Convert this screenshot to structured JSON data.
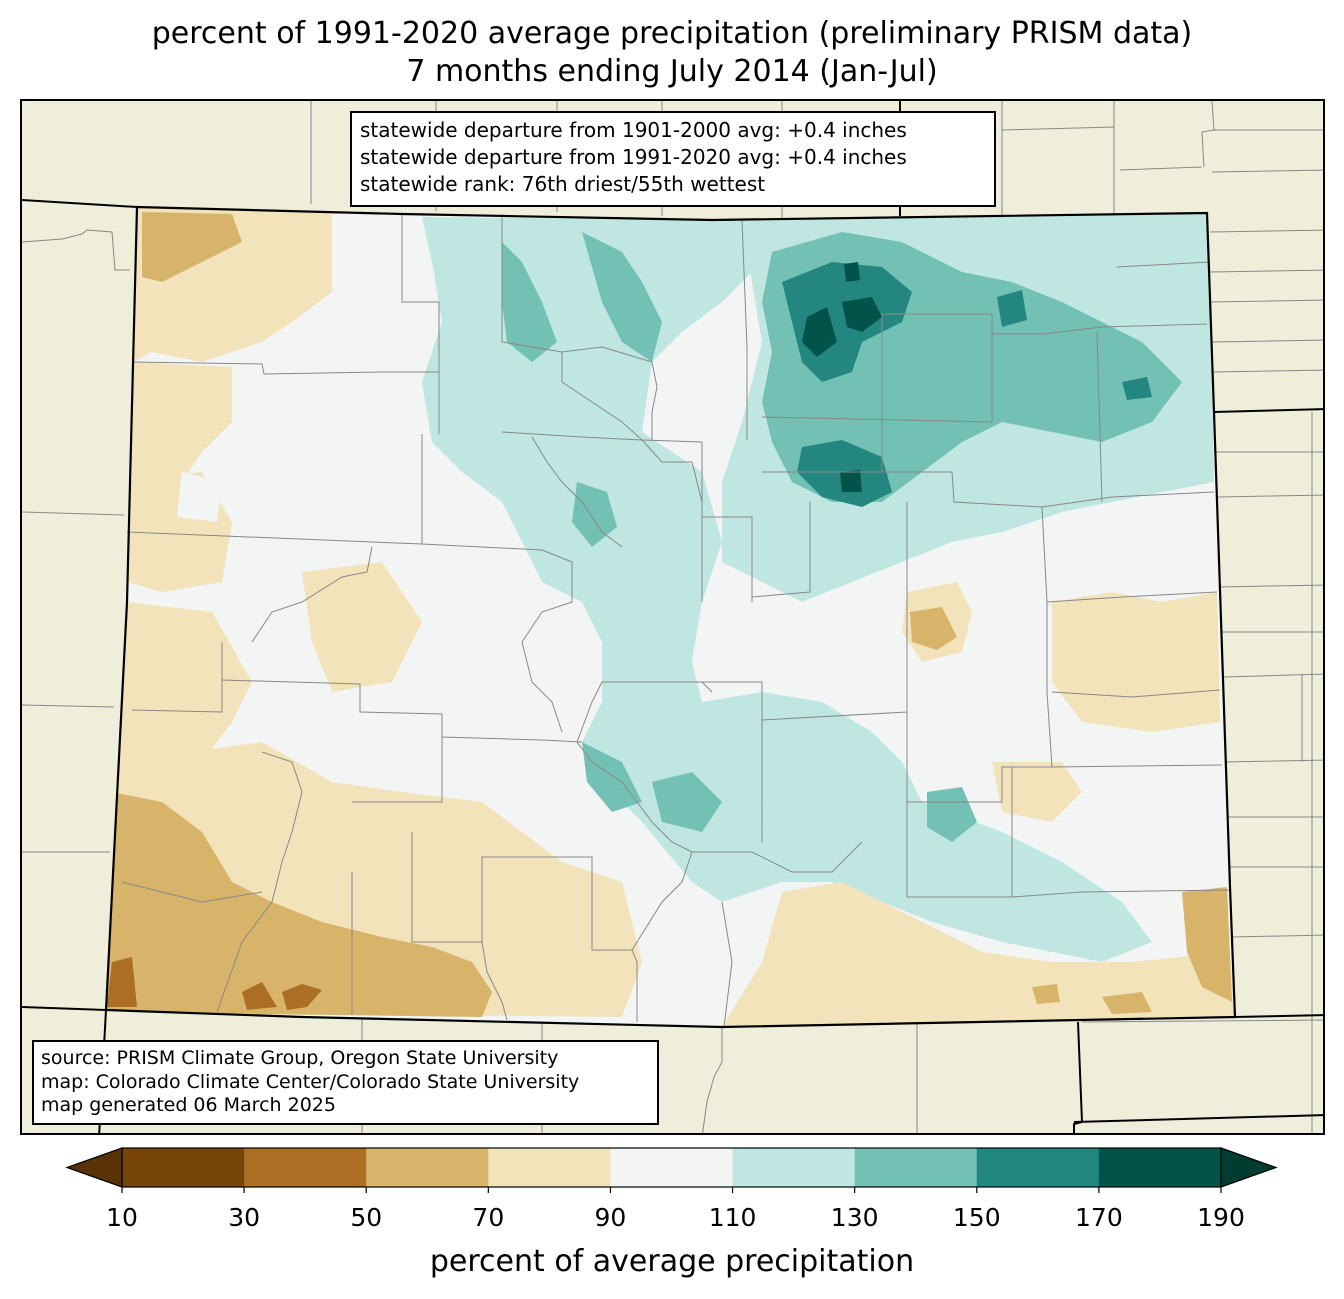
{
  "title": {
    "line1": "percent of 1991-2020 average precipitation (preliminary PRISM data)",
    "line2": "7 months ending July 2014 (Jan-Jul)"
  },
  "stats": {
    "line1": "statewide departure from 1901-2000 avg: +0.4 inches",
    "line2": "statewide departure from 1991-2020 avg: +0.4 inches",
    "line3": "statewide rank: 76th driest/55th wettest"
  },
  "source": {
    "line1": "source: PRISM Climate Group, Oregon State University",
    "line2": "map: Colorado Climate Center/Colorado State University",
    "line3": "map generated 06 March 2025"
  },
  "colorbar": {
    "label": "percent of average precipitation",
    "ticks": [
      "10",
      "30",
      "50",
      "70",
      "90",
      "110",
      "130",
      "150",
      "170",
      "190"
    ],
    "colors": [
      "#754406",
      "#ab6e22",
      "#d8b46b",
      "#f2e3ba",
      "#f3f5f4",
      "#bfe6e1",
      "#72c1b4",
      "#238780",
      "#02534a"
    ],
    "under_color": "#593207",
    "over_color": "#003c30"
  },
  "map_colors": {
    "background": "#efeedb",
    "county_lines": "#888888",
    "state_lines": "#000000"
  }
}
